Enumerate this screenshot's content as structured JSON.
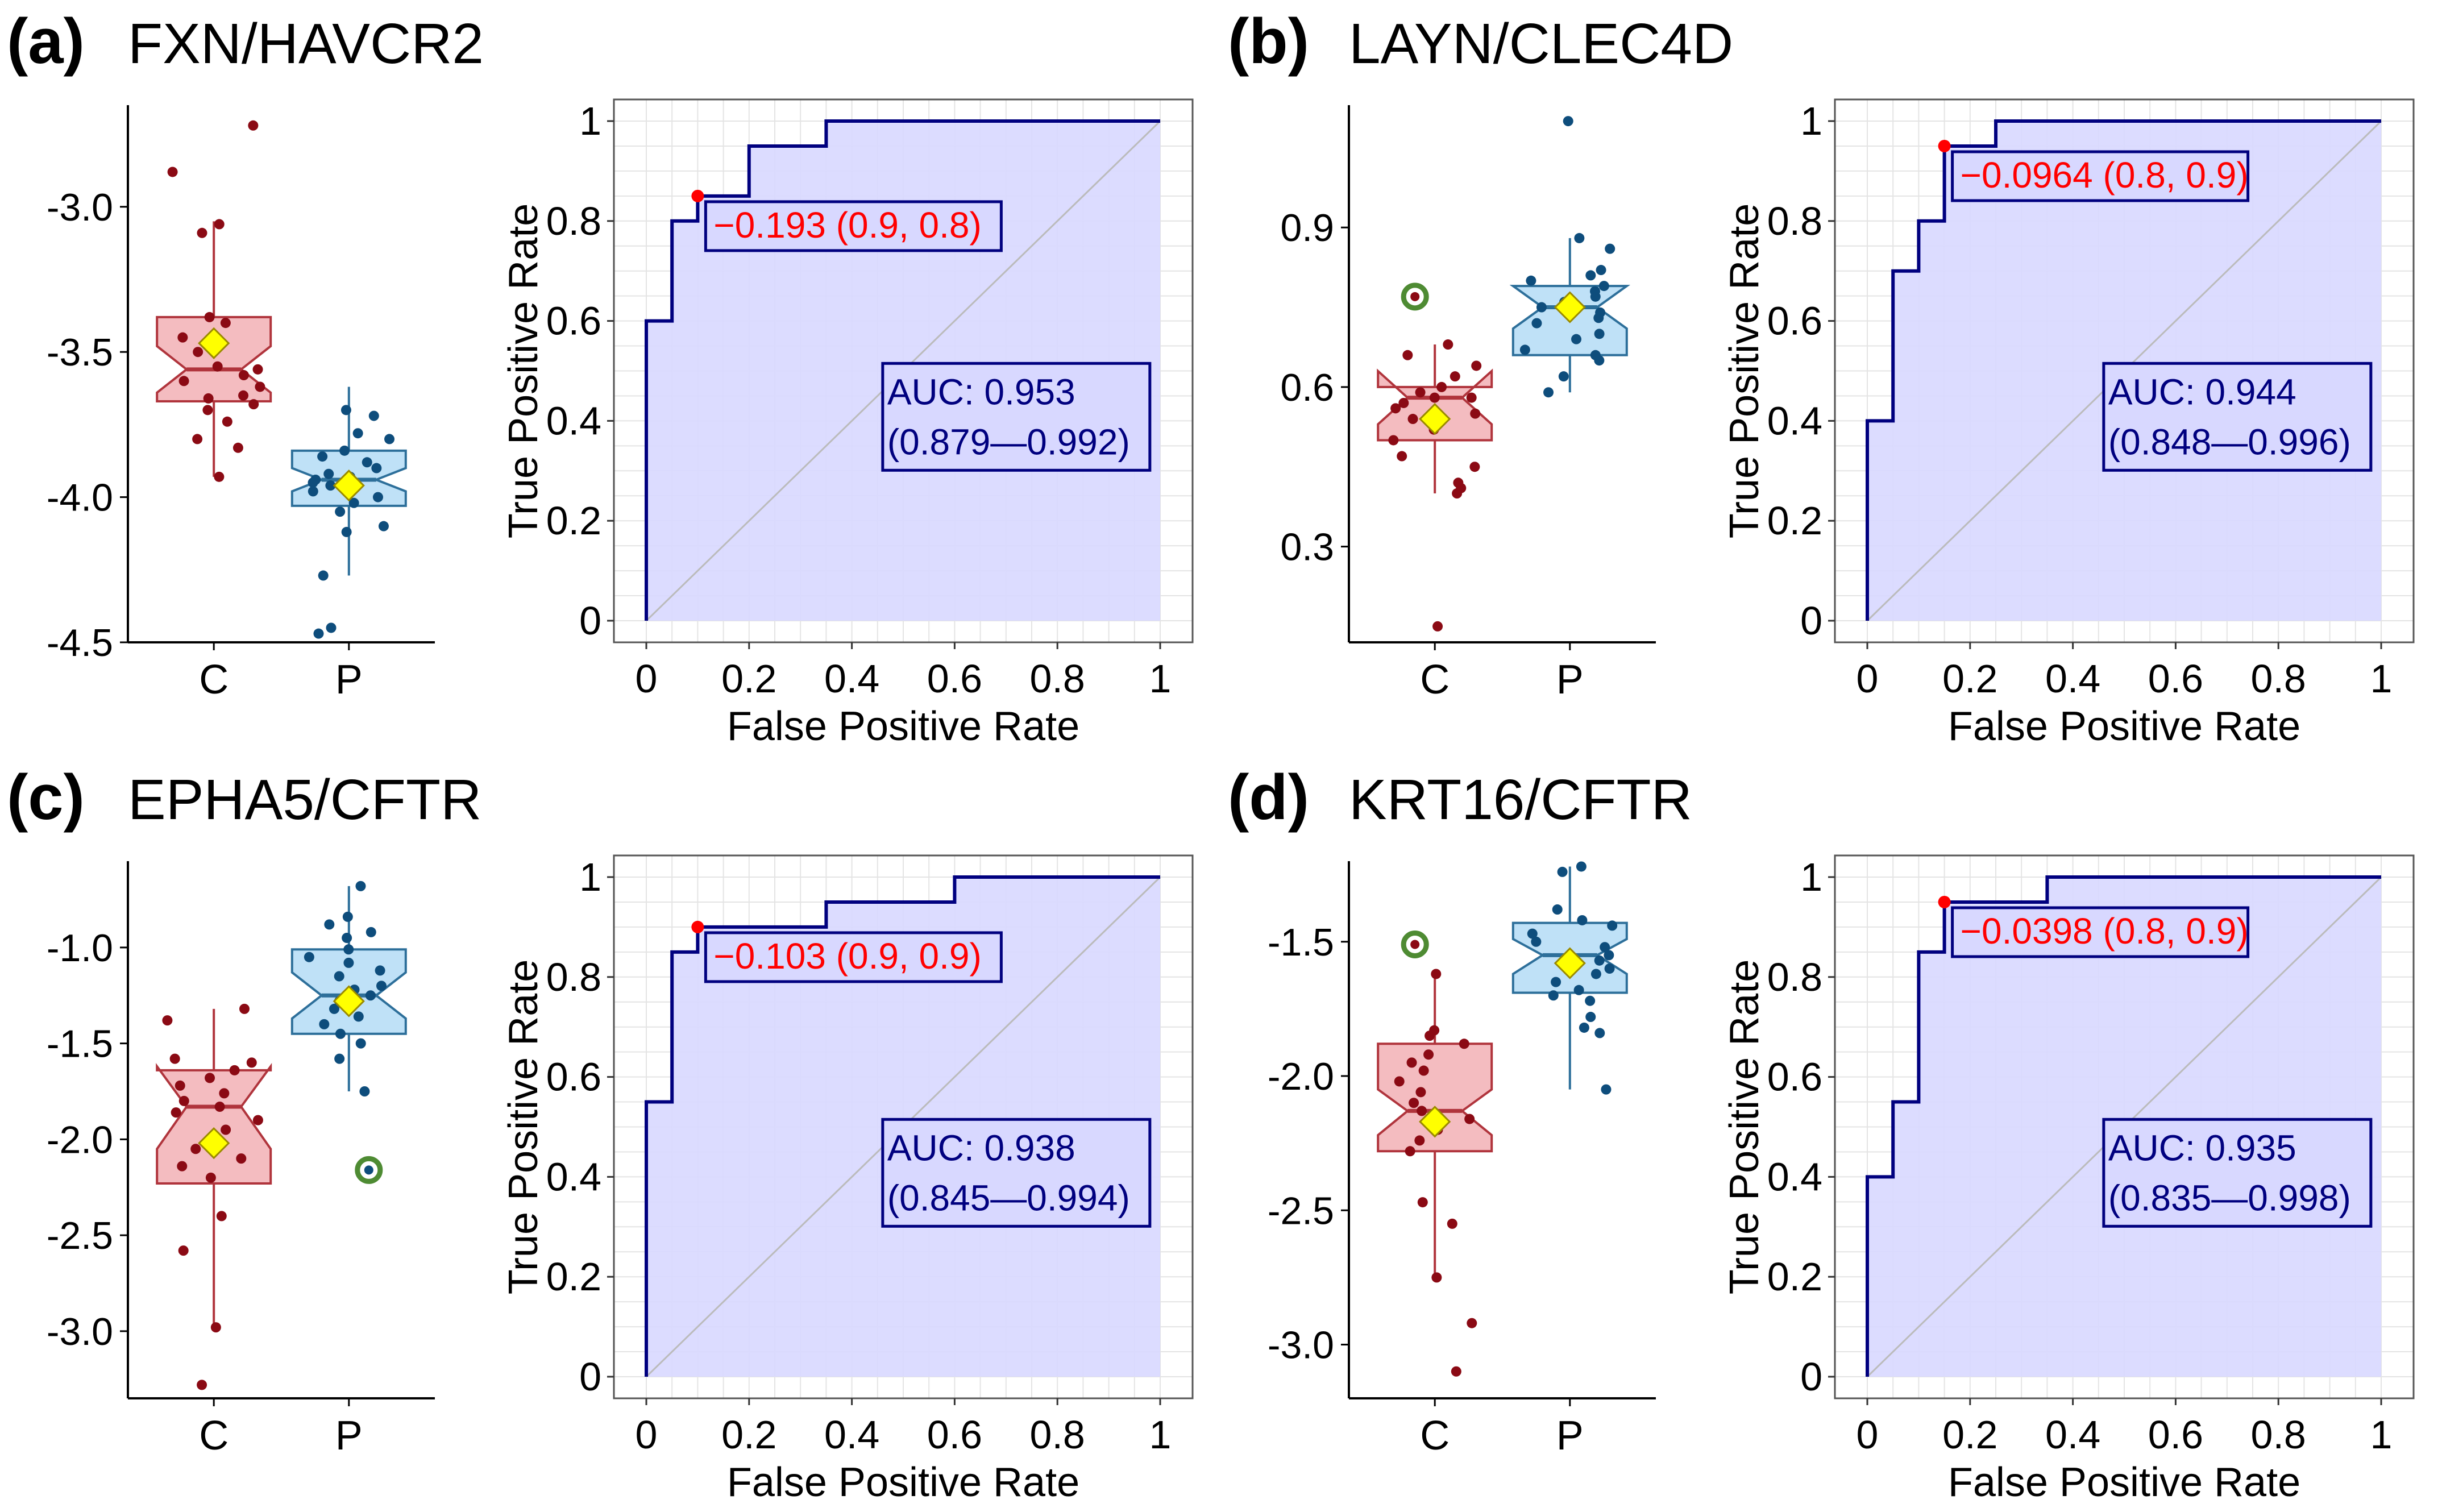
{
  "colors": {
    "control_fill": "#f4bcc0",
    "control_stroke": "#b0343c",
    "control_point": "#8b0a14",
    "patient_fill": "#bfe1f7",
    "patient_stroke": "#2d6f9a",
    "patient_point": "#0e4d7c",
    "mean_marker": "#ffff00",
    "outlier_ring": "#4e8b33",
    "roc_fill": "#d8d8ff",
    "roc_line": "#00007f",
    "diagonal": "#bbbbbb",
    "cutoff_text": "#ff0000",
    "auc_text": "#00007f",
    "grid": "#e4e4e4"
  },
  "panels": [
    {
      "letter": "(a)",
      "title": "FXN/HAVCR2",
      "box": {
        "categories": [
          "C",
          "P"
        ],
        "yticks": [
          "-3.0",
          "-3.5",
          "-4.0",
          "-4.5"
        ],
        "chart_data": {
          "type": "box",
          "ylim": [
            -4.5,
            -2.65
          ],
          "groups": [
            {
              "name": "C",
              "q1": -3.67,
              "median": -3.56,
              "q3": -3.38,
              "whisker_low": -3.93,
              "whisker_high": -3.05,
              "notch_low": -3.64,
              "notch_high": -3.48,
              "mean": -3.47,
              "points": [
                -2.72,
                -2.88,
                -3.06,
                -3.09,
                -3.38,
                -3.4,
                -3.45,
                -3.5,
                -3.55,
                -3.56,
                -3.58,
                -3.6,
                -3.62,
                -3.65,
                -3.66,
                -3.68,
                -3.7,
                -3.74,
                -3.8,
                -3.83,
                -3.93
              ]
            },
            {
              "name": "P",
              "q1": -4.03,
              "median": -3.94,
              "q3": -3.84,
              "whisker_low": -4.27,
              "whisker_high": -3.62,
              "notch_low": -3.98,
              "notch_high": -3.9,
              "mean": -3.96,
              "points": [
                -3.7,
                -3.72,
                -3.78,
                -3.8,
                -3.84,
                -3.86,
                -3.88,
                -3.9,
                -3.92,
                -3.93,
                -3.94,
                -3.95,
                -3.96,
                -3.98,
                -4.0,
                -4.02,
                -4.05,
                -4.1,
                -4.12,
                -4.27,
                -4.45,
                -4.47
              ]
            }
          ]
        }
      },
      "roc": {
        "xticks": [
          "0",
          "0.2",
          "0.4",
          "0.6",
          "0.8",
          "1"
        ],
        "yticks": [
          "0",
          "0.2",
          "0.4",
          "0.6",
          "0.8",
          "1"
        ],
        "xlabel": "False Positive Rate",
        "ylabel": "True Positive Rate",
        "chart_data": {
          "type": "line",
          "x": [
            0,
            0,
            0.05,
            0.05,
            0.1,
            0.1,
            0.2,
            0.2,
            0.35,
            0.35,
            1
          ],
          "y": [
            0,
            0.6,
            0.6,
            0.8,
            0.8,
            0.85,
            0.85,
            0.95,
            0.95,
            1,
            1
          ],
          "cutoff_point": [
            0.1,
            0.85
          ],
          "auc_box_at_y": 0.4
        },
        "cutoff_label": "−0.193 (0.9, 0.8)",
        "auc_line1": "AUC: 0.953",
        "auc_line2": "(0.879—0.992)"
      }
    },
    {
      "letter": "(b)",
      "title": "LAYN/CLEC4D",
      "box": {
        "categories": [
          "C",
          "P"
        ],
        "yticks": [
          "0.9",
          "0.6",
          "0.3"
        ],
        "chart_data": {
          "type": "box",
          "ylim": [
            0.12,
            1.13
          ],
          "groups": [
            {
              "name": "C",
              "q1": 0.5,
              "median": 0.58,
              "q3": 0.6,
              "whisker_low": 0.4,
              "whisker_high": 0.68,
              "notch_low": 0.53,
              "notch_high": 0.63,
              "mean": 0.54,
              "points": [
                0.15,
                0.4,
                0.41,
                0.42,
                0.45,
                0.47,
                0.5,
                0.52,
                0.54,
                0.55,
                0.56,
                0.57,
                0.58,
                0.58,
                0.59,
                0.6,
                0.62,
                0.64,
                0.66,
                0.68
              ],
              "outlier": 0.77
            },
            {
              "name": "P",
              "q1": 0.66,
              "median": 0.75,
              "q3": 0.79,
              "whisker_low": 0.59,
              "whisker_high": 0.88,
              "notch_low": 0.71,
              "notch_high": 0.79,
              "mean": 0.75,
              "points": [
                0.59,
                0.62,
                0.65,
                0.66,
                0.67,
                0.69,
                0.7,
                0.72,
                0.73,
                0.74,
                0.75,
                0.76,
                0.77,
                0.78,
                0.79,
                0.8,
                0.81,
                0.82,
                0.86,
                0.88,
                1.1
              ]
            }
          ]
        }
      },
      "roc": {
        "xticks": [
          "0",
          "0.2",
          "0.4",
          "0.6",
          "0.8",
          "1"
        ],
        "yticks": [
          "0",
          "0.2",
          "0.4",
          "0.6",
          "0.8",
          "1"
        ],
        "xlabel": "False Positive Rate",
        "ylabel": "True Positive Rate",
        "chart_data": {
          "type": "line",
          "x": [
            0,
            0,
            0.05,
            0.05,
            0.1,
            0.1,
            0.15,
            0.15,
            0.25,
            0.25,
            1
          ],
          "y": [
            0,
            0.4,
            0.4,
            0.7,
            0.7,
            0.8,
            0.8,
            0.95,
            0.95,
            1,
            1
          ],
          "cutoff_point": [
            0.15,
            0.95
          ],
          "auc_box_at_y": 0.4
        },
        "cutoff_label": "−0.0964 (0.8, 0.9)",
        "auc_line1": "AUC: 0.944",
        "auc_line2": "(0.848—0.996)"
      }
    },
    {
      "letter": "(c)",
      "title": "EPHA5/CFTR",
      "box": {
        "categories": [
          "C",
          "P"
        ],
        "yticks": [
          "-1.0",
          "-1.5",
          "-2.0",
          "-2.5",
          "-3.0"
        ],
        "chart_data": {
          "type": "box",
          "ylim": [
            -3.35,
            -0.55
          ],
          "groups": [
            {
              "name": "C",
              "q1": -2.23,
              "median": -1.83,
              "q3": -1.64,
              "whisker_low": -2.98,
              "whisker_high": -1.32,
              "notch_low": -2.05,
              "notch_high": -1.62,
              "mean": -2.02,
              "points": [
                -1.32,
                -1.38,
                -1.58,
                -1.6,
                -1.64,
                -1.68,
                -1.72,
                -1.76,
                -1.8,
                -1.83,
                -1.86,
                -1.9,
                -1.95,
                -2.05,
                -2.1,
                -2.14,
                -2.2,
                -2.4,
                -2.58,
                -2.98,
                -3.28
              ]
            },
            {
              "name": "P",
              "q1": -1.45,
              "median": -1.25,
              "q3": -1.01,
              "whisker_low": -1.75,
              "whisker_high": -0.68,
              "notch_low": -1.37,
              "notch_high": -1.13,
              "mean": -1.28,
              "points": [
                -0.68,
                -0.84,
                -0.88,
                -0.92,
                -0.95,
                -1.01,
                -1.05,
                -1.08,
                -1.12,
                -1.15,
                -1.2,
                -1.22,
                -1.25,
                -1.28,
                -1.32,
                -1.36,
                -1.4,
                -1.45,
                -1.5,
                -1.58,
                -1.75
              ],
              "outlier": -2.16
            }
          ]
        }
      },
      "roc": {
        "xticks": [
          "0",
          "0.2",
          "0.4",
          "0.6",
          "0.8",
          "1"
        ],
        "yticks": [
          "0",
          "0.2",
          "0.4",
          "0.6",
          "0.8",
          "1"
        ],
        "xlabel": "False Positive Rate",
        "ylabel": "True Positive Rate",
        "chart_data": {
          "type": "line",
          "x": [
            0,
            0,
            0.05,
            0.05,
            0.1,
            0.1,
            0.35,
            0.35,
            0.6,
            0.6,
            1
          ],
          "y": [
            0,
            0.55,
            0.55,
            0.85,
            0.85,
            0.9,
            0.9,
            0.95,
            0.95,
            1,
            1
          ],
          "cutoff_point": [
            0.1,
            0.9
          ],
          "auc_box_at_y": 0.4
        },
        "cutoff_label": "−0.103 (0.9, 0.9)",
        "auc_line1": "AUC: 0.938",
        "auc_line2": "(0.845—0.994)"
      }
    },
    {
      "letter": "(d)",
      "title": "KRT16/CFTR",
      "box": {
        "categories": [
          "C",
          "P"
        ],
        "yticks": [
          "-1.5",
          "-2.0",
          "-2.5",
          "-3.0"
        ],
        "chart_data": {
          "type": "box",
          "ylim": [
            -3.2,
            -1.2
          ],
          "groups": [
            {
              "name": "C",
              "q1": -2.28,
              "median": -2.13,
              "q3": -1.88,
              "whisker_low": -2.75,
              "whisker_high": -1.62,
              "notch_low": -2.22,
              "notch_high": -2.05,
              "mean": -2.17,
              "points": [
                -1.62,
                -1.83,
                -1.85,
                -1.88,
                -1.92,
                -1.95,
                -1.98,
                -2.02,
                -2.06,
                -2.1,
                -2.13,
                -2.16,
                -2.2,
                -2.24,
                -2.28,
                -2.47,
                -2.55,
                -2.75,
                -2.92,
                -3.1
              ],
              "outlier": -1.51
            },
            {
              "name": "P",
              "q1": -1.69,
              "median": -1.55,
              "q3": -1.43,
              "whisker_low": -2.05,
              "whisker_high": -1.22,
              "notch_low": -1.62,
              "notch_high": -1.49,
              "mean": -1.58,
              "points": [
                -1.22,
                -1.24,
                -1.38,
                -1.42,
                -1.44,
                -1.47,
                -1.5,
                -1.52,
                -1.55,
                -1.57,
                -1.6,
                -1.62,
                -1.65,
                -1.68,
                -1.7,
                -1.72,
                -1.78,
                -1.82,
                -1.84,
                -2.05
              ]
            }
          ]
        }
      },
      "roc": {
        "xticks": [
          "0",
          "0.2",
          "0.4",
          "0.6",
          "0.8",
          "1"
        ],
        "yticks": [
          "0",
          "0.2",
          "0.4",
          "0.6",
          "0.8",
          "1"
        ],
        "xlabel": "False Positive Rate",
        "ylabel": "True Positive Rate",
        "chart_data": {
          "type": "line",
          "x": [
            0,
            0,
            0.05,
            0.05,
            0.1,
            0.1,
            0.15,
            0.15,
            0.35,
            0.35,
            1
          ],
          "y": [
            0,
            0.4,
            0.4,
            0.55,
            0.55,
            0.85,
            0.85,
            0.95,
            0.95,
            1,
            1
          ],
          "cutoff_point": [
            0.15,
            0.95
          ],
          "auc_box_at_y": 0.4
        },
        "cutoff_label": "−0.0398 (0.8, 0.9)",
        "auc_line1": "AUC: 0.935",
        "auc_line2": "(0.835—0.998)"
      }
    }
  ]
}
